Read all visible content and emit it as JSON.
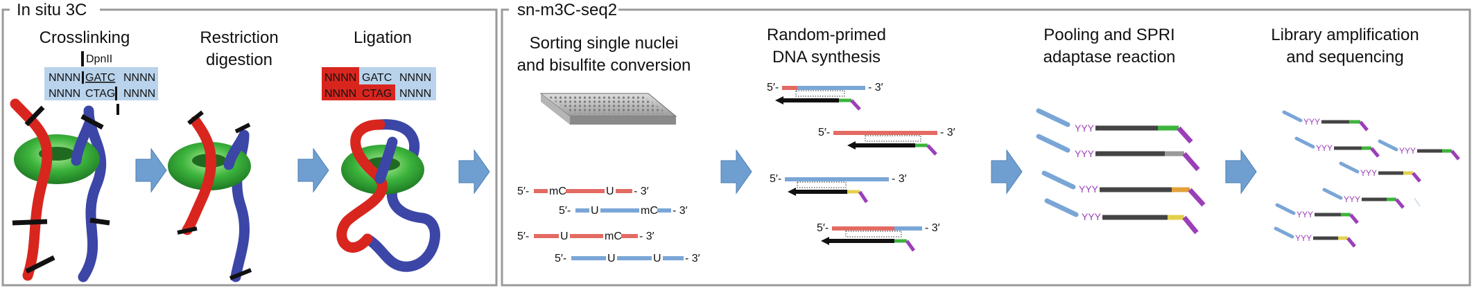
{
  "panels": {
    "left": {
      "title": "In situ 3C",
      "steps": [
        {
          "line1": "Crosslinking",
          "line2": ""
        },
        {
          "line1": "Restriction",
          "line2": "digestion"
        },
        {
          "line1": "Ligation",
          "line2": ""
        }
      ],
      "enzyme": "DpnII",
      "seq_crosslink": {
        "top": [
          "NNNN",
          "GATC",
          "NNNN"
        ],
        "bottom": [
          "NNNN",
          "CTAG",
          "NNNN"
        ]
      },
      "seq_ligation": {
        "top": [
          "NNNN",
          "GATC",
          "NNNN"
        ],
        "bottom": [
          "NNNN",
          "CTAG",
          "NNNN"
        ]
      }
    },
    "right": {
      "title": "sn-m3C-seq2",
      "steps": [
        {
          "line1": "Sorting single nuclei",
          "line2": "and bisulfite conversion"
        },
        {
          "line1": "Random-primed",
          "line2": "DNA synthesis"
        },
        {
          "line1": "Pooling and SPRI",
          "line2": "adaptase reaction"
        },
        {
          "line1": "Library amplification",
          "line2": "and sequencing"
        }
      ],
      "bisulfite_strands": [
        {
          "mid1": "mC",
          "mid2": "U",
          "five": "5′-",
          "three": "- 3′"
        },
        {
          "mid1": "U",
          "mid2": "mC",
          "five": "5′-",
          "three": "- 3′"
        },
        {
          "mid1": "U",
          "mid2": "mC",
          "five": "5′-",
          "three": "- 3′"
        },
        {
          "mid1": "U",
          "mid2": "U",
          "five": "5′-",
          "three": "- 3′"
        }
      ],
      "end5": "5′-",
      "end3": "- 3′",
      "adaptase_tail": "YYY"
    }
  },
  "colors": {
    "red": "#d8261f",
    "blue": "#3b46a6",
    "green": "#3cb43c",
    "seq_bg": "#b9d3ec",
    "seq_red": "#d8261f",
    "arrow": "#6f9fd0",
    "strand_red": "#e36b63",
    "strand_blue": "#7aa6d6",
    "purple": "#9b3fb8",
    "yellow": "#e3d14a",
    "gray": "#9a9a9a"
  }
}
